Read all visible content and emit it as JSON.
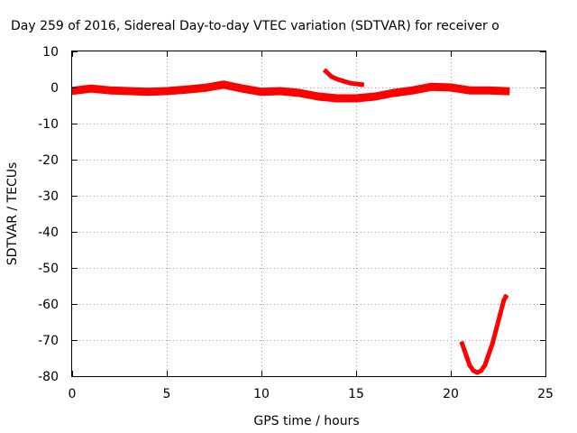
{
  "chart_data": {
    "type": "line",
    "title": "Day 259 of 2016, Sidereal Day-to-day VTEC variation (SDTVAR) for receiver o",
    "xlabel": "GPS time / hours",
    "ylabel": "SDTVAR / TECUs",
    "xlim": [
      0,
      25
    ],
    "ylim": [
      -80,
      10
    ],
    "grid": true,
    "x_ticks": [
      0,
      5,
      10,
      15,
      20,
      25
    ],
    "y_ticks": [
      10,
      0,
      -10,
      -20,
      -30,
      -40,
      -50,
      -60,
      -70,
      -80
    ],
    "series_color": "#ff0000",
    "series": [
      {
        "x": [
          0.2,
          1.0,
          2.0,
          3.0,
          4.0,
          5.0,
          6.0,
          7.0,
          8.0,
          9.0,
          10.0,
          11.0,
          12.0,
          13.0,
          14.0,
          15.0,
          16.0,
          17.0,
          18.0,
          19.0,
          20.0,
          21.0,
          22.0,
          22.9
        ],
        "y": [
          -0.8,
          -0.3,
          -0.8,
          -1.0,
          -1.2,
          -1.0,
          -0.6,
          -0.1,
          0.8,
          -0.3,
          -1.2,
          -1.0,
          -1.5,
          -2.5,
          -3.0,
          -3.0,
          -2.5,
          -1.5,
          -0.8,
          0.2,
          0.0,
          -0.8,
          -0.8,
          -1.0
        ]
      },
      {
        "x": [
          13.4,
          13.7,
          14.0,
          14.3,
          14.7,
          15.0,
          15.3
        ],
        "y": [
          4.5,
          3.0,
          2.3,
          1.8,
          1.2,
          1.0,
          0.8
        ]
      },
      {
        "x": [
          20.6,
          20.8,
          21.0,
          21.2,
          21.4,
          21.6,
          21.8,
          22.0,
          22.2,
          22.4,
          22.6,
          22.8,
          22.9
        ],
        "y": [
          -71,
          -74,
          -77,
          -78.5,
          -79,
          -78.5,
          -77,
          -74,
          -71,
          -67,
          -63,
          -59,
          -58
        ]
      }
    ]
  }
}
